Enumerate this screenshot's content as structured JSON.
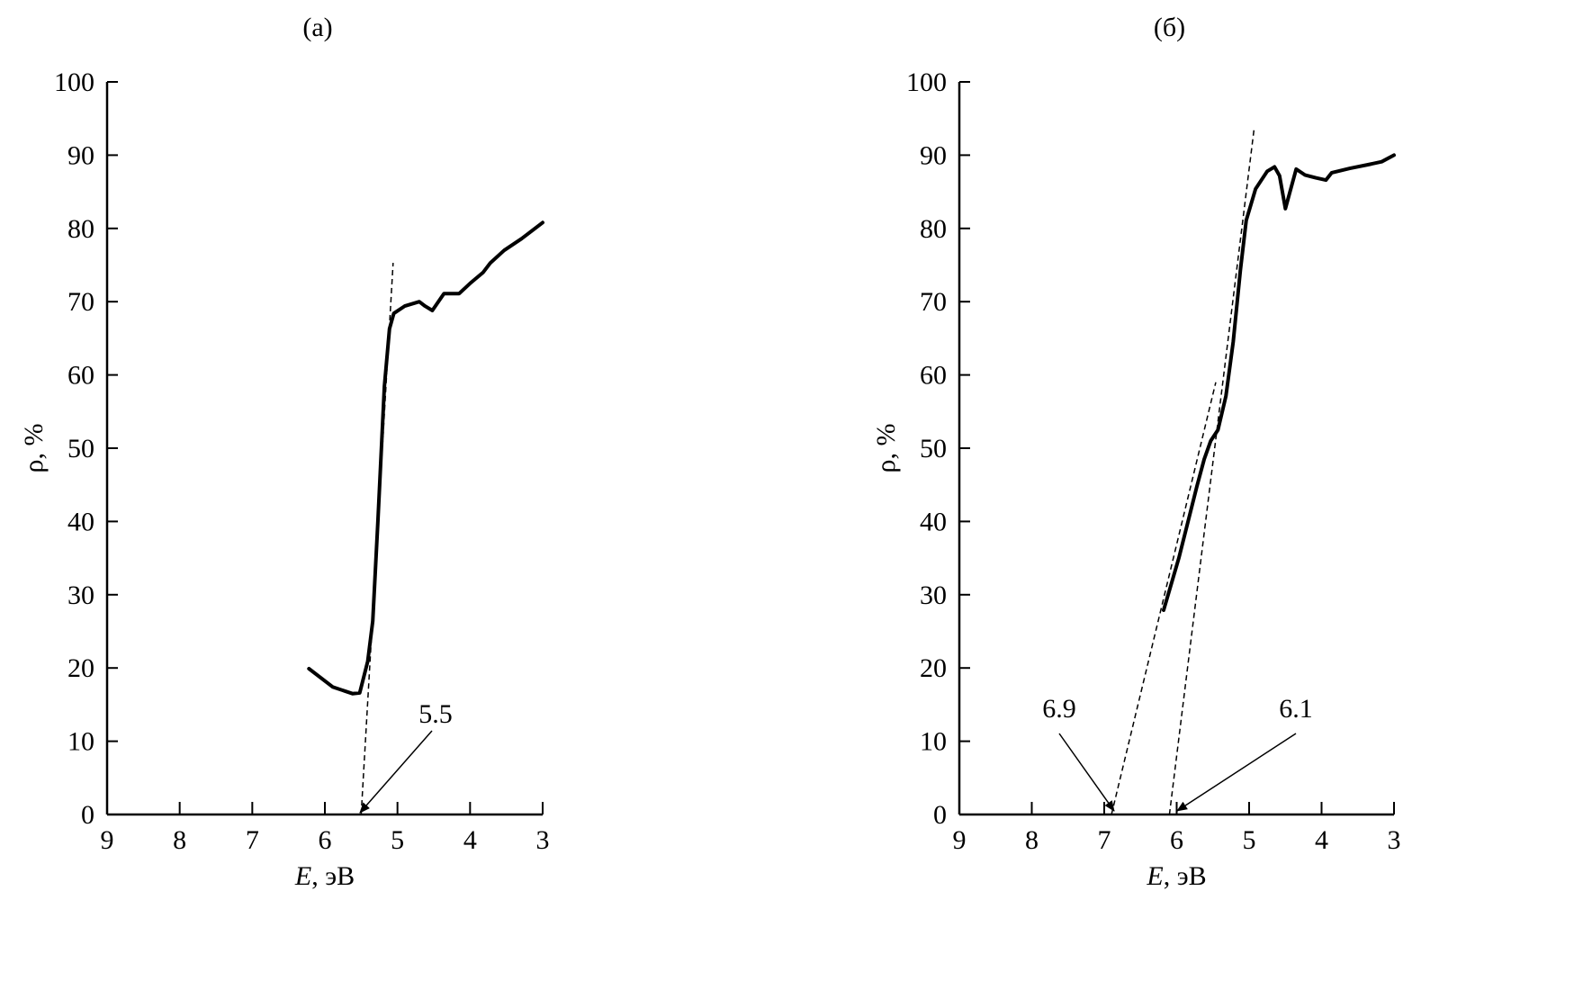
{
  "chart_data": [
    {
      "type": "line",
      "title": "(a)",
      "xlabel_italic": "E",
      "xlabel_rest": ", эВ",
      "ylabel": "ρ, %",
      "xlim": [
        9,
        3
      ],
      "ylim": [
        0,
        100
      ],
      "x_reversed": true,
      "xticks": [
        9,
        8,
        7,
        6,
        5,
        4,
        3
      ],
      "yticks": [
        0,
        10,
        20,
        30,
        40,
        50,
        60,
        70,
        80,
        90,
        100
      ],
      "grid": false,
      "series": [
        {
          "x": [
            6.22,
            5.89,
            5.62,
            5.52,
            5.41,
            5.34,
            5.27,
            5.18,
            5.11,
            5.05,
            4.9,
            4.7,
            4.62,
            4.52,
            4.36,
            4.15,
            4.0,
            3.82,
            3.72,
            3.53,
            3.29,
            3.0
          ],
          "y": [
            19.9,
            17.4,
            16.5,
            16.6,
            20.9,
            26.4,
            40,
            58.4,
            66.3,
            68.4,
            69.4,
            70.0,
            69.4,
            68.8,
            71.1,
            71.1,
            72.5,
            74,
            75.3,
            77,
            78.6,
            80.8
          ]
        }
      ],
      "tangents": [
        {
          "x": [
            5.5,
            5.06
          ],
          "y": [
            0,
            75.3
          ]
        }
      ],
      "annotations": [
        {
          "text": "5.5",
          "x": 5.5,
          "y": 0
        }
      ]
    },
    {
      "type": "line",
      "title": "(б)",
      "xlabel_italic": "E",
      "xlabel_rest": ", эВ",
      "ylabel": "ρ, %",
      "xlim": [
        9,
        3
      ],
      "ylim": [
        0,
        100
      ],
      "x_reversed": true,
      "xticks": [
        9,
        8,
        7,
        6,
        5,
        4,
        3
      ],
      "yticks": [
        0,
        10,
        20,
        30,
        40,
        50,
        60,
        70,
        80,
        90,
        100
      ],
      "grid": false,
      "series": [
        {
          "x": [
            6.18,
            5.97,
            5.72,
            5.62,
            5.53,
            5.43,
            5.32,
            5.22,
            5.12,
            5.04,
            4.91,
            4.75,
            4.65,
            4.58,
            4.5,
            4.35,
            4.23,
            4.08,
            3.94,
            3.86,
            3.61,
            3.36,
            3.17,
            3.0
          ],
          "y": [
            27.9,
            35,
            44.8,
            48.5,
            51,
            52.5,
            57.1,
            64.5,
            74.3,
            81.1,
            85.4,
            87.8,
            88.4,
            87.2,
            82.7,
            88.1,
            87.3,
            86.9,
            86.6,
            87.6,
            88.2,
            88.7,
            89.1,
            90.0
          ]
        }
      ],
      "tangents": [
        {
          "x": [
            6.1,
            4.93
          ],
          "y": [
            0,
            93.7
          ]
        },
        {
          "x": [
            6.9,
            5.46
          ],
          "y": [
            0,
            59
          ]
        }
      ],
      "annotations": [
        {
          "text": "6.9",
          "x": 6.9,
          "y": 0
        },
        {
          "text": "6.1",
          "x": 6.1,
          "y": 0
        }
      ]
    }
  ]
}
